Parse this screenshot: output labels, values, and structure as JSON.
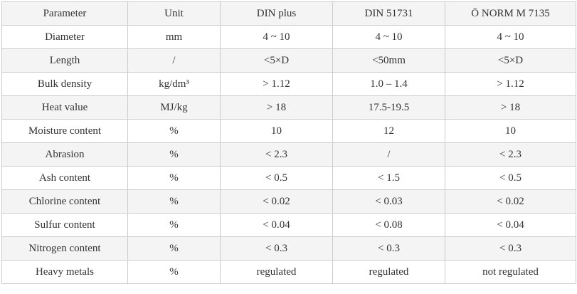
{
  "table": {
    "header": [
      "Parameter",
      "Unit",
      "DIN plus",
      "DIN 51731",
      "Ö NORM M 7135"
    ],
    "rows": [
      [
        "Diameter",
        "mm",
        "4 ~ 10",
        "4 ~ 10",
        "4 ~ 10"
      ],
      [
        "Length",
        "/",
        "<5×D",
        "<50mm",
        "<5×D"
      ],
      [
        "Bulk density",
        "kg/dm³",
        "> 1.12",
        "1.0 – 1.4",
        "> 1.12"
      ],
      [
        "Heat value",
        "MJ/kg",
        "> 18",
        "17.5-19.5",
        "> 18"
      ],
      [
        "Moisture content",
        "%",
        "10",
        "12",
        "10"
      ],
      [
        "Abrasion",
        "%",
        "< 2.3",
        "/",
        "< 2.3"
      ],
      [
        "Ash content",
        "%",
        "< 0.5",
        "< 1.5",
        "< 0.5"
      ],
      [
        "Chlorine content",
        "%",
        "< 0.02",
        "< 0.03",
        "< 0.02"
      ],
      [
        "Sulfur content",
        "%",
        "< 0.04",
        "< 0.08",
        "< 0.04"
      ],
      [
        "Nitrogen content",
        "%",
        "< 0.3",
        "< 0.3",
        "< 0.3"
      ],
      [
        "Heavy metals",
        "%",
        "regulated",
        "regulated",
        "not regulated"
      ]
    ]
  }
}
